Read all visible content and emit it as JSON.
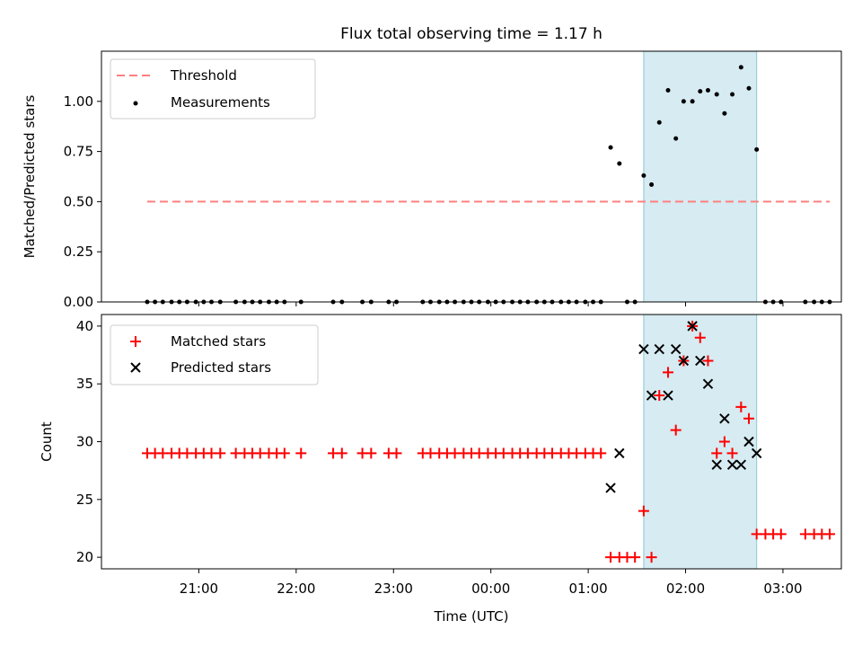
{
  "chart_data": [
    {
      "type": "scatter",
      "title": "Flux total observing time = 1.17 h",
      "xlabel": "",
      "ylabel": "Matched/Predicted stars",
      "x_unit": "UTC hours (24+ = next day)",
      "xlim": [
        20.0,
        27.6
      ],
      "ylim": [
        0,
        1.25
      ],
      "y_ticks": [
        "0.00",
        "0.25",
        "0.50",
        "0.75",
        "1.00"
      ],
      "y_tick_values": [
        0,
        0.25,
        0.5,
        0.75,
        1.0
      ],
      "x_ticks": [
        "21:00",
        "22:00",
        "23:00",
        "00:00",
        "01:00",
        "02:00",
        "03:00"
      ],
      "x_tick_values": [
        21,
        22,
        23,
        24,
        25,
        26,
        27
      ],
      "shaded_region": {
        "x_start": 25.57,
        "x_end": 26.73,
        "color": "#add8e6"
      },
      "legend": {
        "position": "top-left"
      },
      "threshold": {
        "name": "Threshold",
        "value": 0.5,
        "x_start": 20.47,
        "x_end": 27.48,
        "color": "#ff7f7f"
      },
      "series": [
        {
          "name": "Measurements",
          "color": "#000000",
          "x": [
            20.47,
            20.55,
            20.63,
            20.72,
            20.8,
            20.88,
            20.97,
            21.05,
            21.13,
            21.22,
            21.38,
            21.47,
            21.55,
            21.63,
            21.72,
            21.8,
            21.88,
            22.05,
            22.38,
            22.47,
            22.68,
            22.77,
            22.95,
            23.03,
            23.3,
            23.38,
            23.47,
            23.55,
            23.63,
            23.72,
            23.8,
            23.88,
            23.97,
            24.05,
            24.13,
            24.22,
            24.3,
            24.38,
            24.47,
            24.55,
            24.63,
            24.72,
            24.8,
            24.88,
            24.97,
            25.05,
            25.13,
            25.23,
            25.32,
            25.4,
            25.48,
            25.57,
            25.65,
            25.73,
            25.82,
            25.9,
            25.98,
            26.07,
            26.15,
            26.23,
            26.32,
            26.4,
            26.48,
            26.57,
            26.65,
            26.73,
            26.82,
            26.9,
            26.98,
            27.23,
            27.32,
            27.4,
            27.48
          ],
          "values": [
            0,
            0,
            0,
            0,
            0,
            0,
            0,
            0,
            0,
            0,
            0,
            0,
            0,
            0,
            0,
            0,
            0,
            0,
            0,
            0,
            0,
            0,
            0,
            0,
            0,
            0,
            0,
            0,
            0,
            0,
            0,
            0,
            0,
            0,
            0,
            0,
            0,
            0,
            0,
            0,
            0,
            0,
            0,
            0,
            0,
            0,
            0,
            0.77,
            0.69,
            0,
            0,
            0.63,
            0.585,
            0.895,
            1.055,
            0.815,
            1.0,
            1.0,
            1.05,
            1.055,
            1.035,
            0.94,
            1.035,
            1.17,
            1.065,
            0.76,
            0,
            0,
            0,
            0,
            0,
            0,
            0
          ]
        }
      ]
    },
    {
      "type": "scatter",
      "title": "",
      "xlabel": "Time (UTC)",
      "ylabel": "Count",
      "x_unit": "UTC hours (24+ = next day)",
      "xlim": [
        20.0,
        27.6
      ],
      "ylim": [
        19,
        41
      ],
      "y_ticks": [
        "20",
        "25",
        "30",
        "35",
        "40"
      ],
      "y_tick_values": [
        20,
        25,
        30,
        35,
        40
      ],
      "x_ticks": [
        "21:00",
        "22:00",
        "23:00",
        "00:00",
        "01:00",
        "02:00",
        "03:00"
      ],
      "x_tick_values": [
        21,
        22,
        23,
        24,
        25,
        26,
        27
      ],
      "shaded_region": {
        "x_start": 25.57,
        "x_end": 26.73,
        "color": "#add8e6"
      },
      "legend": {
        "position": "top-left"
      },
      "series": [
        {
          "name": "Matched stars",
          "marker": "plus",
          "color": "#ff0000",
          "x": [
            20.47,
            20.55,
            20.63,
            20.72,
            20.8,
            20.88,
            20.97,
            21.05,
            21.13,
            21.22,
            21.38,
            21.47,
            21.55,
            21.63,
            21.72,
            21.8,
            21.88,
            22.05,
            22.38,
            22.47,
            22.68,
            22.77,
            22.95,
            23.03,
            23.3,
            23.38,
            23.47,
            23.55,
            23.63,
            23.72,
            23.8,
            23.88,
            23.97,
            24.05,
            24.13,
            24.22,
            24.3,
            24.38,
            24.47,
            24.55,
            24.63,
            24.72,
            24.8,
            24.88,
            24.97,
            25.05,
            25.13,
            25.23,
            25.32,
            25.4,
            25.48,
            25.57,
            25.65,
            25.73,
            25.82,
            25.9,
            25.98,
            26.07,
            26.15,
            26.23,
            26.32,
            26.4,
            26.48,
            26.57,
            26.65,
            26.73,
            26.82,
            26.9,
            26.98,
            27.23,
            27.32,
            27.4,
            27.48
          ],
          "values": [
            29,
            29,
            29,
            29,
            29,
            29,
            29,
            29,
            29,
            29,
            29,
            29,
            29,
            29,
            29,
            29,
            29,
            29,
            29,
            29,
            29,
            29,
            29,
            29,
            29,
            29,
            29,
            29,
            29,
            29,
            29,
            29,
            29,
            29,
            29,
            29,
            29,
            29,
            29,
            29,
            29,
            29,
            29,
            29,
            29,
            29,
            29,
            20,
            20,
            20,
            20,
            24,
            20,
            34,
            36,
            31,
            37,
            40,
            39,
            37,
            29,
            30,
            29,
            33,
            32,
            22,
            22,
            22,
            22,
            22,
            22,
            22,
            22
          ]
        },
        {
          "name": "Predicted stars",
          "marker": "x",
          "color": "#000000",
          "x": [
            25.23,
            25.32,
            25.57,
            25.65,
            25.73,
            25.82,
            25.9,
            25.98,
            26.07,
            26.15,
            26.23,
            26.32,
            26.4,
            26.48,
            26.57,
            26.65,
            26.73
          ],
          "values": [
            26,
            29,
            38,
            34,
            38,
            34,
            38,
            37,
            40,
            37,
            35,
            28,
            32,
            28,
            28,
            30,
            29
          ]
        }
      ]
    }
  ]
}
